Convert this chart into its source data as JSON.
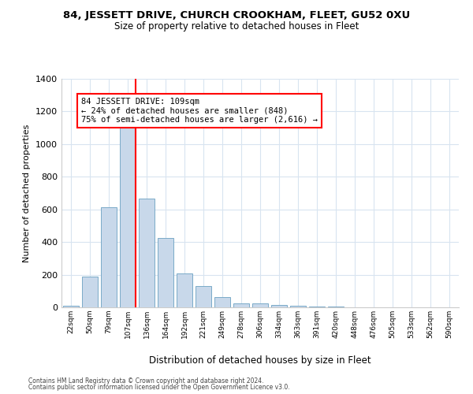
{
  "title": "84, JESSETT DRIVE, CHURCH CROOKHAM, FLEET, GU52 0XU",
  "subtitle": "Size of property relative to detached houses in Fleet",
  "xlabel": "Distribution of detached houses by size in Fleet",
  "ylabel": "Number of detached properties",
  "bar_color": "#c8d8ea",
  "bar_edge_color": "#7aaac8",
  "bar_categories": [
    "22sqm",
    "50sqm",
    "79sqm",
    "107sqm",
    "136sqm",
    "164sqm",
    "192sqm",
    "221sqm",
    "249sqm",
    "278sqm",
    "306sqm",
    "334sqm",
    "363sqm",
    "391sqm",
    "420sqm",
    "448sqm",
    "476sqm",
    "505sqm",
    "533sqm",
    "562sqm",
    "590sqm"
  ],
  "bar_values": [
    10,
    190,
    615,
    1100,
    665,
    425,
    210,
    130,
    65,
    25,
    25,
    15,
    10,
    5,
    3,
    2,
    2,
    1,
    1,
    1,
    1
  ],
  "ylim": [
    0,
    1400
  ],
  "yticks": [
    0,
    200,
    400,
    600,
    800,
    1000,
    1200,
    1400
  ],
  "annotation_line1": "84 JESSETT DRIVE: 109sqm",
  "annotation_line2": "← 24% of detached houses are smaller (848)",
  "annotation_line3": "75% of semi-detached houses are larger (2,616) →",
  "footer_line1": "Contains HM Land Registry data © Crown copyright and database right 2024.",
  "footer_line2": "Contains public sector information licensed under the Open Government Licence v3.0.",
  "background_color": "#ffffff",
  "grid_color": "#d8e4f0"
}
